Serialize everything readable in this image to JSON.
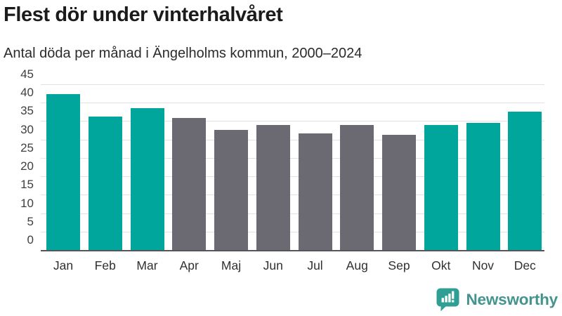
{
  "header": {
    "title": "Flest dör under vinterhalvåret",
    "subtitle": "Antal döda per månad i Ängelholms kommun, 2000–2024"
  },
  "chart_data": {
    "type": "bar",
    "title": "Flest dör under vinterhalvåret",
    "subtitle": "Antal döda per månad i Ängelholms kommun, 2000–2024",
    "categories": [
      "Jan",
      "Feb",
      "Mar",
      "Apr",
      "Maj",
      "Jun",
      "Jul",
      "Aug",
      "Sep",
      "Okt",
      "Nov",
      "Dec"
    ],
    "values": [
      42.4,
      36.2,
      38.6,
      35.9,
      32.6,
      33.9,
      31.6,
      33.9,
      31.2,
      33.9,
      34.5,
      37.5
    ],
    "bar_color_keys": [
      "teal",
      "teal",
      "teal",
      "gray",
      "gray",
      "gray",
      "gray",
      "gray",
      "gray",
      "teal",
      "teal",
      "teal"
    ],
    "colors": {
      "teal": "#00a59b",
      "gray": "#6b6a72"
    },
    "xlabel": "",
    "ylabel": "",
    "ylim": [
      0,
      45
    ],
    "ytick_step": 5,
    "yticks": [
      0,
      5,
      10,
      15,
      20,
      25,
      30,
      35,
      40,
      45
    ],
    "grid": true,
    "legend": false,
    "highlight_meaning": "teal = winter half-year months, gray = summer half-year months"
  },
  "footer": {
    "brand": "Newsworthy",
    "brand_text_color": "#44948e",
    "brand_icon_color": "#2f9e94"
  }
}
